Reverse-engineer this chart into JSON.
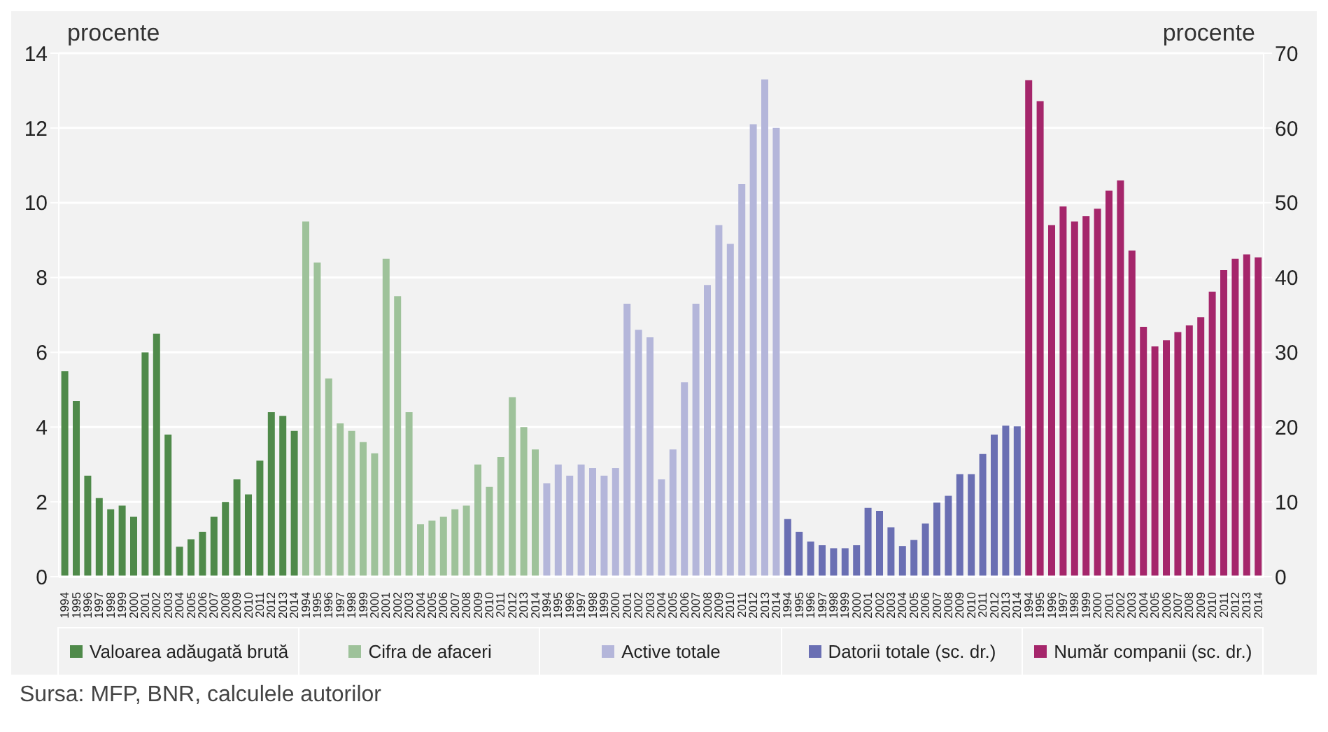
{
  "chart_data": {
    "type": "bar",
    "ylabel": "procente",
    "y2label": "procente",
    "categories": [
      "1994",
      "1995",
      "1996",
      "1997",
      "1998",
      "1999",
      "2000",
      "2001",
      "2002",
      "2003",
      "2004",
      "2005",
      "2006",
      "2007",
      "2008",
      "2009",
      "2010",
      "2011",
      "2012",
      "2013",
      "2014",
      "1994",
      "1995",
      "1996",
      "1997",
      "1998",
      "1999",
      "2000",
      "2001",
      "2002",
      "2003",
      "2004",
      "2005",
      "2006",
      "2007",
      "2008",
      "2009",
      "2010",
      "2011",
      "2012",
      "2013",
      "2014",
      "1994",
      "1995",
      "1996",
      "1997",
      "1998",
      "1999",
      "2000",
      "2001",
      "2002",
      "2003",
      "2004",
      "2005",
      "2006",
      "2007",
      "2008",
      "2009",
      "2010",
      "2011",
      "2012",
      "2013",
      "2014",
      "1994",
      "1995",
      "1996",
      "1997",
      "1998",
      "1999",
      "2000",
      "2001",
      "2002",
      "2003",
      "2004",
      "2005",
      "2006",
      "2007",
      "2008",
      "2009",
      "2010",
      "2011",
      "2012",
      "2013",
      "2014",
      "1994",
      "1995",
      "1996",
      "1997",
      "1998",
      "1999",
      "2000",
      "2001",
      "2002",
      "2003",
      "2004",
      "2005",
      "2006",
      "2007",
      "2008",
      "2009",
      "2010",
      "2011",
      "2012",
      "2013",
      "2014"
    ],
    "series": [
      {
        "name": "Valoarea adăugată brută",
        "color": "#4f8a4a",
        "values": [
          5.5,
          4.7,
          2.7,
          2.1,
          1.8,
          1.9,
          1.6,
          6.0,
          6.5,
          3.8,
          0.8,
          1.0,
          1.2,
          1.6,
          2.0,
          2.6,
          2.2,
          3.1,
          4.4,
          4.3,
          3.9,
          null,
          null,
          null,
          null,
          null,
          null,
          null,
          null,
          null,
          null,
          null,
          null,
          null,
          null,
          null,
          null,
          null,
          null,
          null,
          null,
          null,
          null,
          null,
          null,
          null,
          null,
          null,
          null,
          null,
          null,
          null,
          null,
          null,
          null,
          null,
          null,
          null,
          null,
          null,
          null,
          null,
          null,
          null,
          null,
          null,
          null,
          null,
          null,
          null,
          null,
          null,
          null,
          null,
          null,
          null,
          null,
          null,
          null,
          null,
          null,
          null,
          null,
          null,
          null,
          null,
          null,
          null,
          null,
          null,
          null,
          null,
          null,
          null,
          null,
          null,
          null,
          null,
          null,
          null,
          null,
          null,
          null,
          null,
          null
        ]
      },
      {
        "name": "Cifra de afaceri",
        "color": "#9ec29a",
        "values": [
          null,
          null,
          null,
          null,
          null,
          null,
          null,
          null,
          null,
          null,
          null,
          null,
          null,
          null,
          null,
          null,
          null,
          null,
          null,
          null,
          null,
          9.5,
          8.4,
          5.3,
          4.1,
          3.9,
          3.6,
          3.3,
          8.5,
          7.5,
          4.4,
          1.4,
          1.5,
          1.6,
          1.8,
          1.9,
          3.0,
          2.4,
          3.2,
          4.8,
          4.0,
          3.4,
          null,
          null,
          null,
          null,
          null,
          null,
          null,
          null,
          null,
          null,
          null,
          null,
          null,
          null,
          null,
          null,
          null,
          null,
          null,
          null,
          null,
          null,
          null,
          null,
          null,
          null,
          null,
          null,
          null,
          null,
          null,
          null,
          null,
          null,
          null,
          null,
          null,
          null,
          null,
          null,
          null,
          null,
          null,
          null,
          null,
          null,
          null,
          null,
          null,
          null,
          null,
          null,
          null,
          null,
          null,
          null,
          null,
          null,
          null,
          null,
          null,
          null,
          null
        ]
      },
      {
        "name": "Active totale",
        "color": "#b4b6da",
        "values": [
          null,
          null,
          null,
          null,
          null,
          null,
          null,
          null,
          null,
          null,
          null,
          null,
          null,
          null,
          null,
          null,
          null,
          null,
          null,
          null,
          null,
          null,
          null,
          null,
          null,
          null,
          null,
          null,
          null,
          null,
          null,
          null,
          null,
          null,
          null,
          null,
          null,
          null,
          null,
          null,
          null,
          null,
          2.5,
          3.0,
          2.7,
          3.0,
          2.9,
          2.7,
          2.9,
          7.3,
          6.6,
          6.4,
          2.6,
          3.4,
          5.2,
          7.3,
          7.8,
          9.4,
          8.9,
          10.5,
          12.1,
          13.3,
          12.0,
          null,
          null,
          null,
          null,
          null,
          null,
          null,
          null,
          null,
          null,
          null,
          null,
          null,
          null,
          null,
          null,
          null,
          null,
          null,
          null,
          null,
          null,
          null,
          null,
          null,
          null,
          null,
          null,
          null,
          null,
          null,
          null,
          null,
          null,
          null,
          null,
          null,
          null,
          null,
          null,
          null,
          null
        ]
      },
      {
        "name": "Datorii totale (sc. dr.)",
        "color": "#6a6fb3",
        "axis": "y2",
        "values": [
          null,
          null,
          null,
          null,
          null,
          null,
          null,
          null,
          null,
          null,
          null,
          null,
          null,
          null,
          null,
          null,
          null,
          null,
          null,
          null,
          null,
          null,
          null,
          null,
          null,
          null,
          null,
          null,
          null,
          null,
          null,
          null,
          null,
          null,
          null,
          null,
          null,
          null,
          null,
          null,
          null,
          null,
          null,
          null,
          null,
          null,
          null,
          null,
          null,
          null,
          null,
          null,
          null,
          null,
          null,
          null,
          null,
          null,
          null,
          null,
          null,
          null,
          null,
          7.7,
          6.0,
          4.7,
          4.2,
          3.8,
          3.8,
          4.2,
          9.2,
          8.8,
          6.6,
          4.1,
          4.9,
          7.1,
          9.9,
          10.8,
          13.7,
          13.7,
          16.4,
          19.0,
          20.2,
          20.1,
          null,
          null,
          null,
          null,
          null,
          null,
          null,
          null,
          null,
          null,
          null,
          null,
          null,
          null,
          null,
          null,
          null,
          null,
          null,
          null,
          null
        ]
      },
      {
        "name": "Număr companii (sc. dr.)",
        "color": "#a5266b",
        "axis": "y2",
        "values": [
          null,
          null,
          null,
          null,
          null,
          null,
          null,
          null,
          null,
          null,
          null,
          null,
          null,
          null,
          null,
          null,
          null,
          null,
          null,
          null,
          null,
          null,
          null,
          null,
          null,
          null,
          null,
          null,
          null,
          null,
          null,
          null,
          null,
          null,
          null,
          null,
          null,
          null,
          null,
          null,
          null,
          null,
          null,
          null,
          null,
          null,
          null,
          null,
          null,
          null,
          null,
          null,
          null,
          null,
          null,
          null,
          null,
          null,
          null,
          null,
          null,
          null,
          null,
          null,
          null,
          null,
          null,
          null,
          null,
          null,
          null,
          null,
          null,
          null,
          null,
          null,
          null,
          null,
          null,
          null,
          null,
          null,
          null,
          null,
          66.4,
          63.6,
          47.0,
          49.5,
          47.5,
          48.2,
          49.2,
          51.6,
          53.0,
          43.6,
          33.4,
          30.8,
          31.6,
          32.7,
          33.6,
          34.7,
          38.1,
          41.0,
          42.5,
          43.1,
          42.7
        ]
      }
    ],
    "ylim": [
      0,
      14
    ],
    "yticks": [
      0,
      2,
      4,
      6,
      8,
      10,
      12,
      14
    ],
    "y2lim": [
      0,
      70
    ],
    "y2ticks": [
      0,
      10,
      20,
      30,
      40,
      50,
      60,
      70
    ],
    "grid": "y",
    "legend": "bottom",
    "annotations": [
      "Sursa: MFP, BNR, calculele autorilor"
    ]
  }
}
